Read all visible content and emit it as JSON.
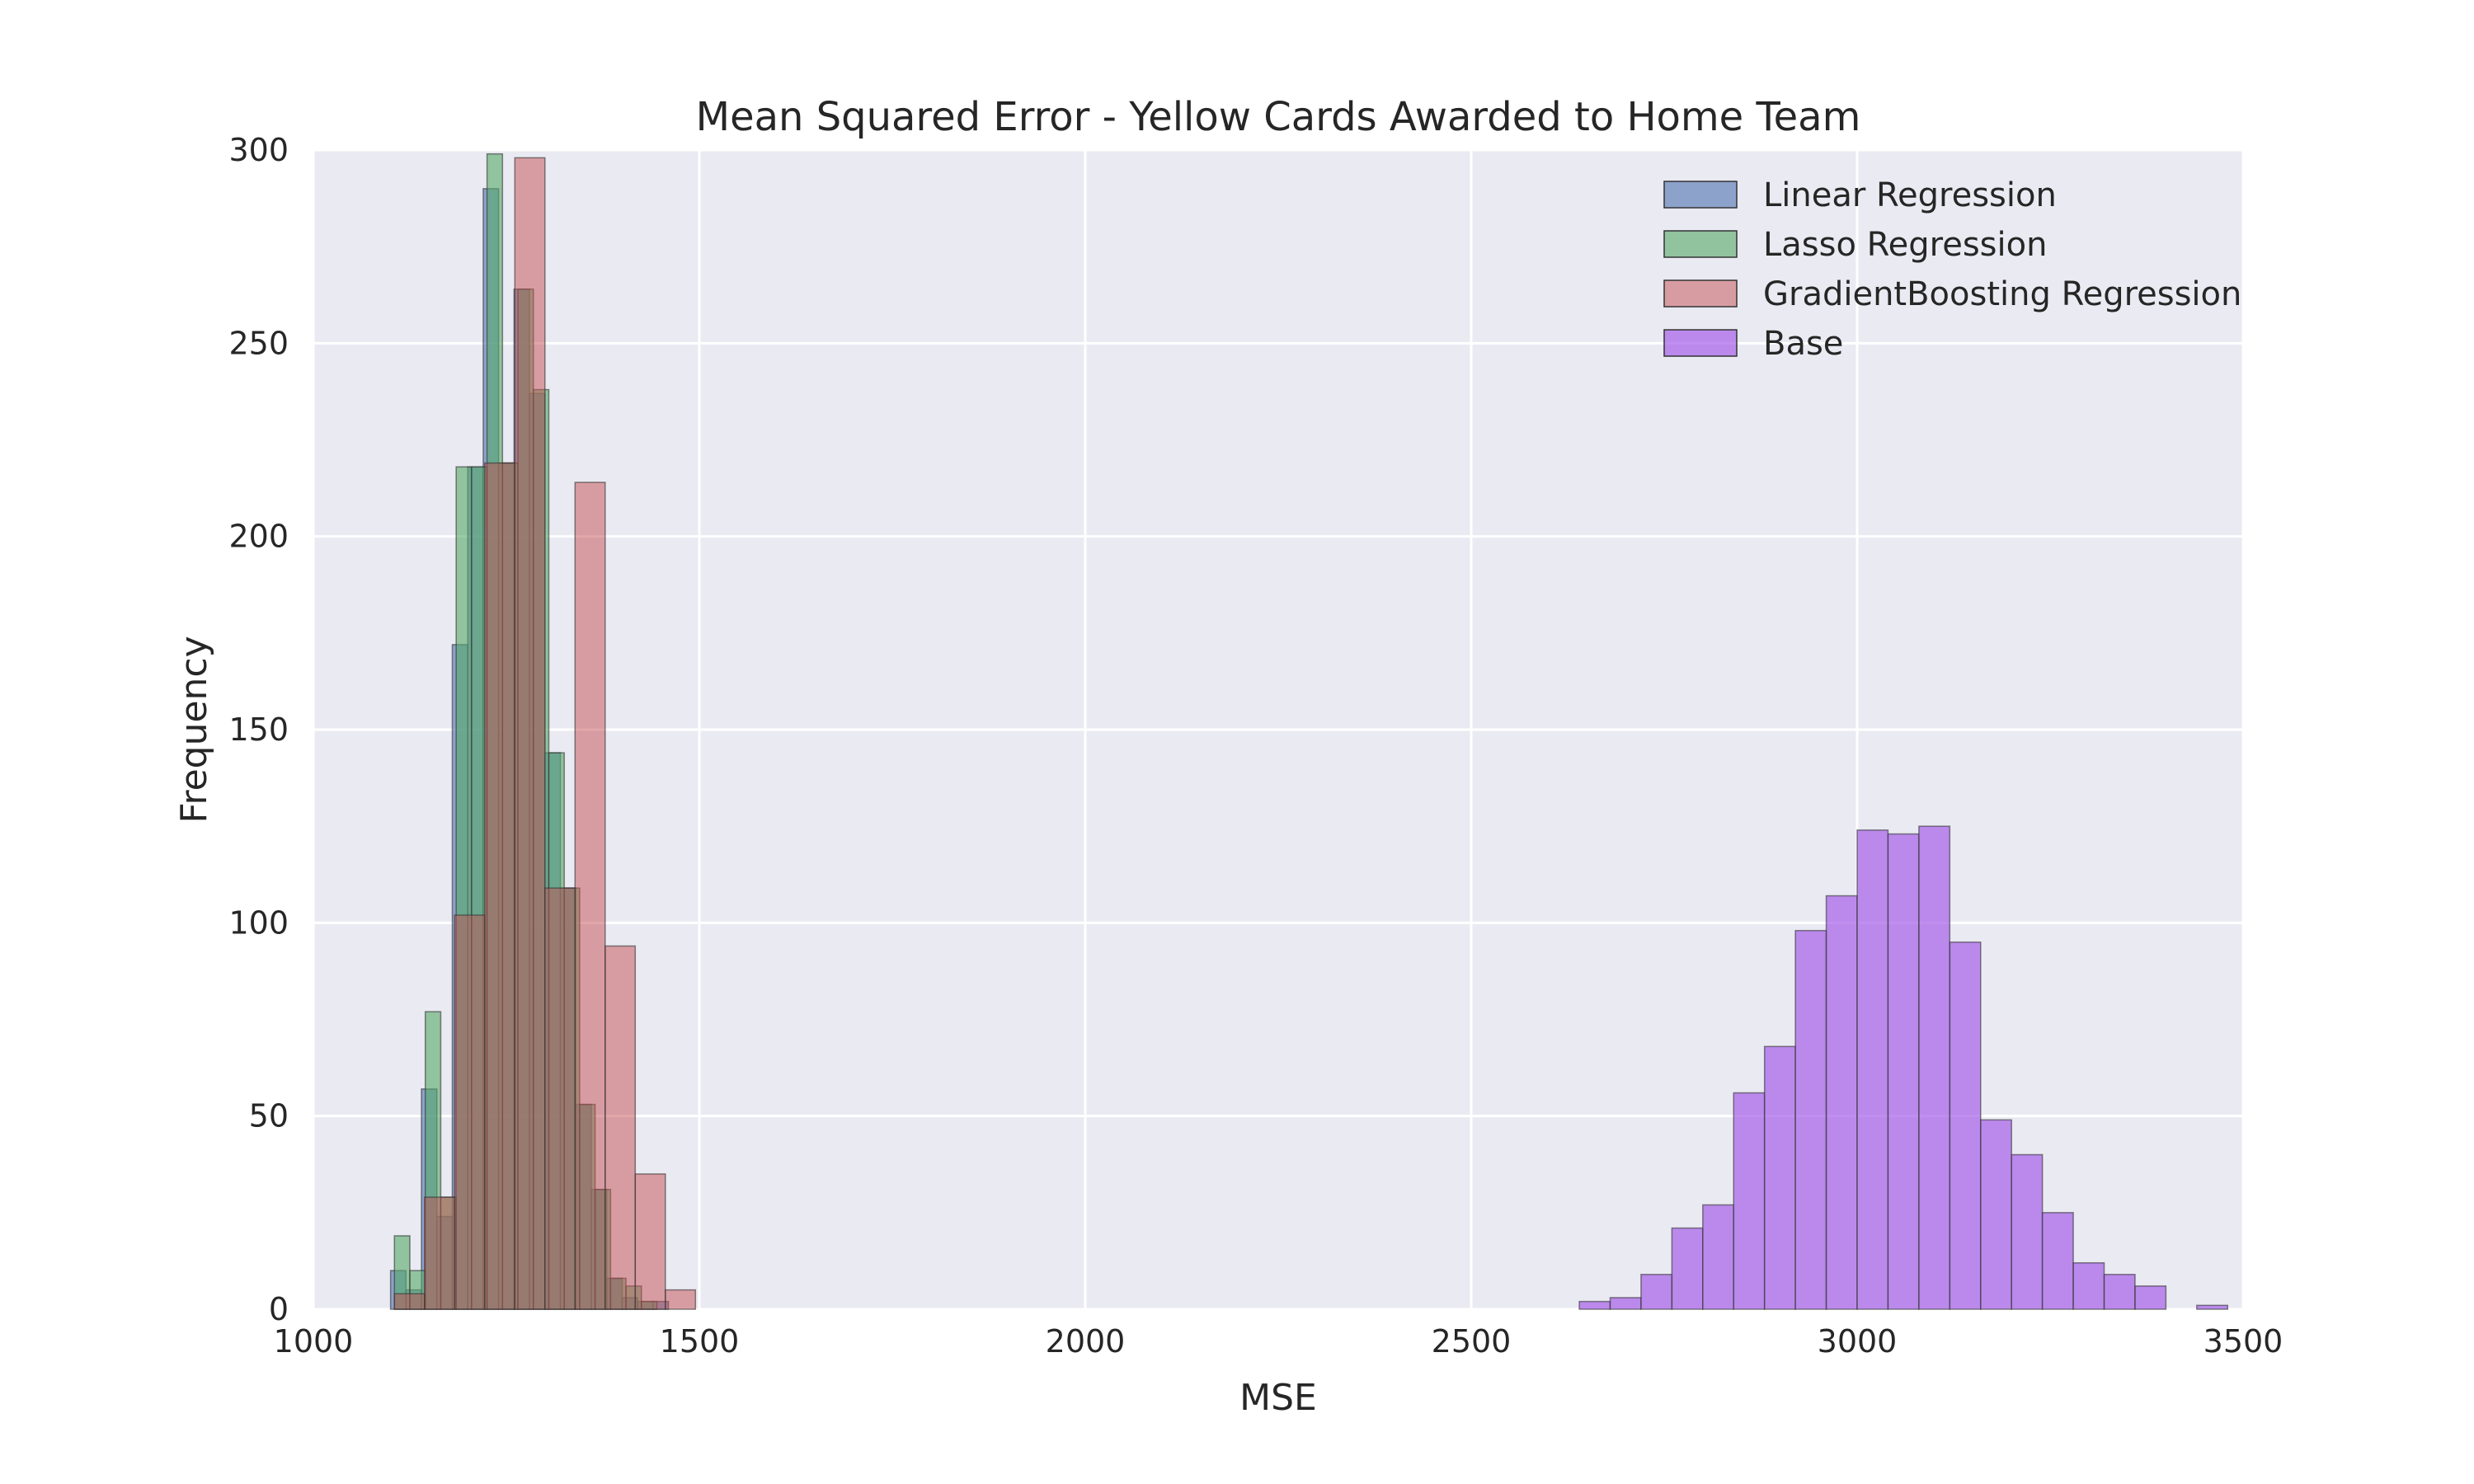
{
  "chart_data": {
    "type": "bar",
    "title": "Mean Squared Error - Yellow Cards Awarded to Home Team",
    "xlabel": "MSE",
    "ylabel": "Frequency",
    "xlim": [
      1000,
      3500
    ],
    "ylim": [
      0,
      300
    ],
    "xticks": [
      1000,
      1500,
      2000,
      2500,
      3000,
      3500
    ],
    "yticks": [
      0,
      50,
      100,
      150,
      200,
      250,
      300
    ],
    "grid": true,
    "legend_position": "top-right",
    "series": [
      {
        "name": "Linear Regression",
        "color": "#4c72b0",
        "bins": [
          {
            "x0": 1100,
            "x1": 1120,
            "count": 10
          },
          {
            "x0": 1120,
            "x1": 1140,
            "count": 5
          },
          {
            "x0": 1140,
            "x1": 1160,
            "count": 57
          },
          {
            "x0": 1160,
            "x1": 1180,
            "count": 24
          },
          {
            "x0": 1180,
            "x1": 1200,
            "count": 172
          },
          {
            "x0": 1200,
            "x1": 1220,
            "count": 218
          },
          {
            "x0": 1220,
            "x1": 1240,
            "count": 290
          },
          {
            "x0": 1240,
            "x1": 1260,
            "count": 219
          },
          {
            "x0": 1260,
            "x1": 1280,
            "count": 264
          },
          {
            "x0": 1280,
            "x1": 1300,
            "count": 237
          },
          {
            "x0": 1300,
            "x1": 1320,
            "count": 144
          },
          {
            "x0": 1320,
            "x1": 1340,
            "count": 109
          },
          {
            "x0": 1340,
            "x1": 1360,
            "count": 53
          },
          {
            "x0": 1360,
            "x1": 1380,
            "count": 31
          },
          {
            "x0": 1380,
            "x1": 1400,
            "count": 8
          },
          {
            "x0": 1400,
            "x1": 1420,
            "count": 3
          },
          {
            "x0": 1420,
            "x1": 1440,
            "count": 2
          },
          {
            "x0": 1440,
            "x1": 1460,
            "count": 2
          }
        ]
      },
      {
        "name": "Lasso Regression",
        "color": "#55a868",
        "bins": [
          {
            "x0": 1105,
            "x1": 1125,
            "count": 19
          },
          {
            "x0": 1125,
            "x1": 1145,
            "count": 10
          },
          {
            "x0": 1145,
            "x1": 1165,
            "count": 77
          },
          {
            "x0": 1165,
            "x1": 1185,
            "count": 29
          },
          {
            "x0": 1185,
            "x1": 1205,
            "count": 218
          },
          {
            "x0": 1205,
            "x1": 1225,
            "count": 218
          },
          {
            "x0": 1225,
            "x1": 1245,
            "count": 299
          },
          {
            "x0": 1245,
            "x1": 1265,
            "count": 219
          },
          {
            "x0": 1265,
            "x1": 1285,
            "count": 264
          },
          {
            "x0": 1285,
            "x1": 1305,
            "count": 238
          },
          {
            "x0": 1305,
            "x1": 1325,
            "count": 144
          },
          {
            "x0": 1325,
            "x1": 1345,
            "count": 109
          },
          {
            "x0": 1345,
            "x1": 1365,
            "count": 53
          },
          {
            "x0": 1365,
            "x1": 1385,
            "count": 31
          },
          {
            "x0": 1385,
            "x1": 1405,
            "count": 8
          },
          {
            "x0": 1405,
            "x1": 1425,
            "count": 6
          },
          {
            "x0": 1425,
            "x1": 1445,
            "count": 2
          }
        ]
      },
      {
        "name": "GradientBoosting Regression",
        "color": "#c44e52",
        "bins": [
          {
            "x0": 1105,
            "x1": 1144,
            "count": 4
          },
          {
            "x0": 1144,
            "x1": 1183,
            "count": 29
          },
          {
            "x0": 1183,
            "x1": 1222,
            "count": 102
          },
          {
            "x0": 1222,
            "x1": 1261,
            "count": 219
          },
          {
            "x0": 1261,
            "x1": 1300,
            "count": 298
          },
          {
            "x0": 1300,
            "x1": 1339,
            "count": 109
          },
          {
            "x0": 1339,
            "x1": 1378,
            "count": 214
          },
          {
            "x0": 1378,
            "x1": 1417,
            "count": 94
          },
          {
            "x0": 1417,
            "x1": 1456,
            "count": 35
          },
          {
            "x0": 1456,
            "x1": 1495,
            "count": 5
          }
        ]
      },
      {
        "name": "Base",
        "color": "#a55fe8",
        "bins": [
          {
            "x0": 2640,
            "x1": 2680,
            "count": 2
          },
          {
            "x0": 2680,
            "x1": 2720,
            "count": 3
          },
          {
            "x0": 2720,
            "x1": 2760,
            "count": 9
          },
          {
            "x0": 2760,
            "x1": 2800,
            "count": 21
          },
          {
            "x0": 2800,
            "x1": 2840,
            "count": 27
          },
          {
            "x0": 2840,
            "x1": 2880,
            "count": 56
          },
          {
            "x0": 2880,
            "x1": 2920,
            "count": 68
          },
          {
            "x0": 2920,
            "x1": 2960,
            "count": 98
          },
          {
            "x0": 2960,
            "x1": 3000,
            "count": 107
          },
          {
            "x0": 3000,
            "x1": 3040,
            "count": 124
          },
          {
            "x0": 3040,
            "x1": 3080,
            "count": 123
          },
          {
            "x0": 3080,
            "x1": 3120,
            "count": 125
          },
          {
            "x0": 3120,
            "x1": 3160,
            "count": 95
          },
          {
            "x0": 3160,
            "x1": 3200,
            "count": 49
          },
          {
            "x0": 3200,
            "x1": 3240,
            "count": 40
          },
          {
            "x0": 3240,
            "x1": 3280,
            "count": 25
          },
          {
            "x0": 3280,
            "x1": 3320,
            "count": 12
          },
          {
            "x0": 3320,
            "x1": 3360,
            "count": 9
          },
          {
            "x0": 3360,
            "x1": 3400,
            "count": 6
          },
          {
            "x0": 3440,
            "x1": 3480,
            "count": 1
          }
        ]
      }
    ]
  }
}
